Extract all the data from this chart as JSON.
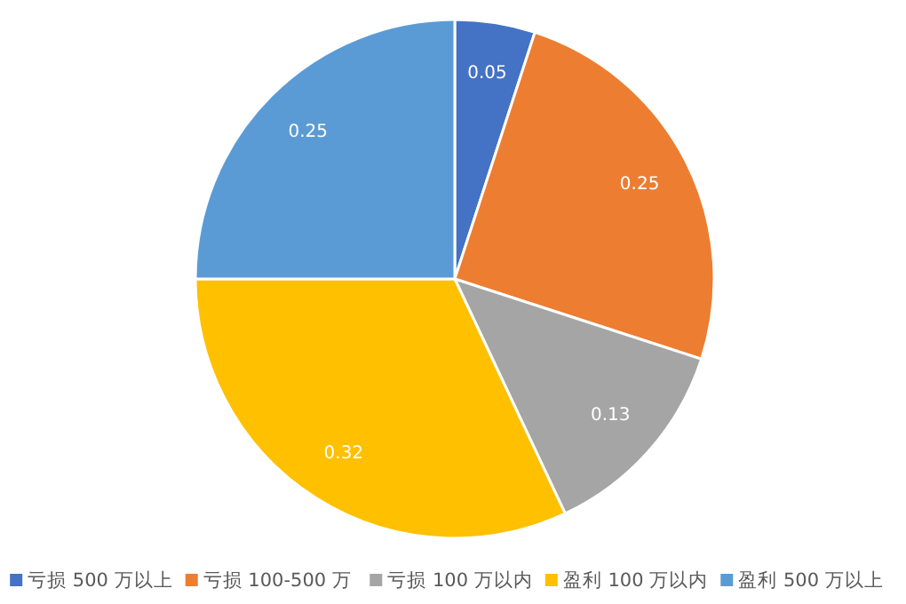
{
  "chart_data": {
    "type": "pie",
    "categories": [
      "亏损 500 万以上",
      "亏损 100-500 万",
      "亏损 100 万以内",
      "盈利 100 万以内",
      "盈利 500 万以上"
    ],
    "values": [
      0.05,
      0.25,
      0.13,
      0.32,
      0.25
    ],
    "colors": [
      "#4472c4",
      "#ed7d31",
      "#a5a5a5",
      "#ffc000",
      "#5b9bd5"
    ],
    "data_labels": true,
    "legend": "bottom"
  }
}
